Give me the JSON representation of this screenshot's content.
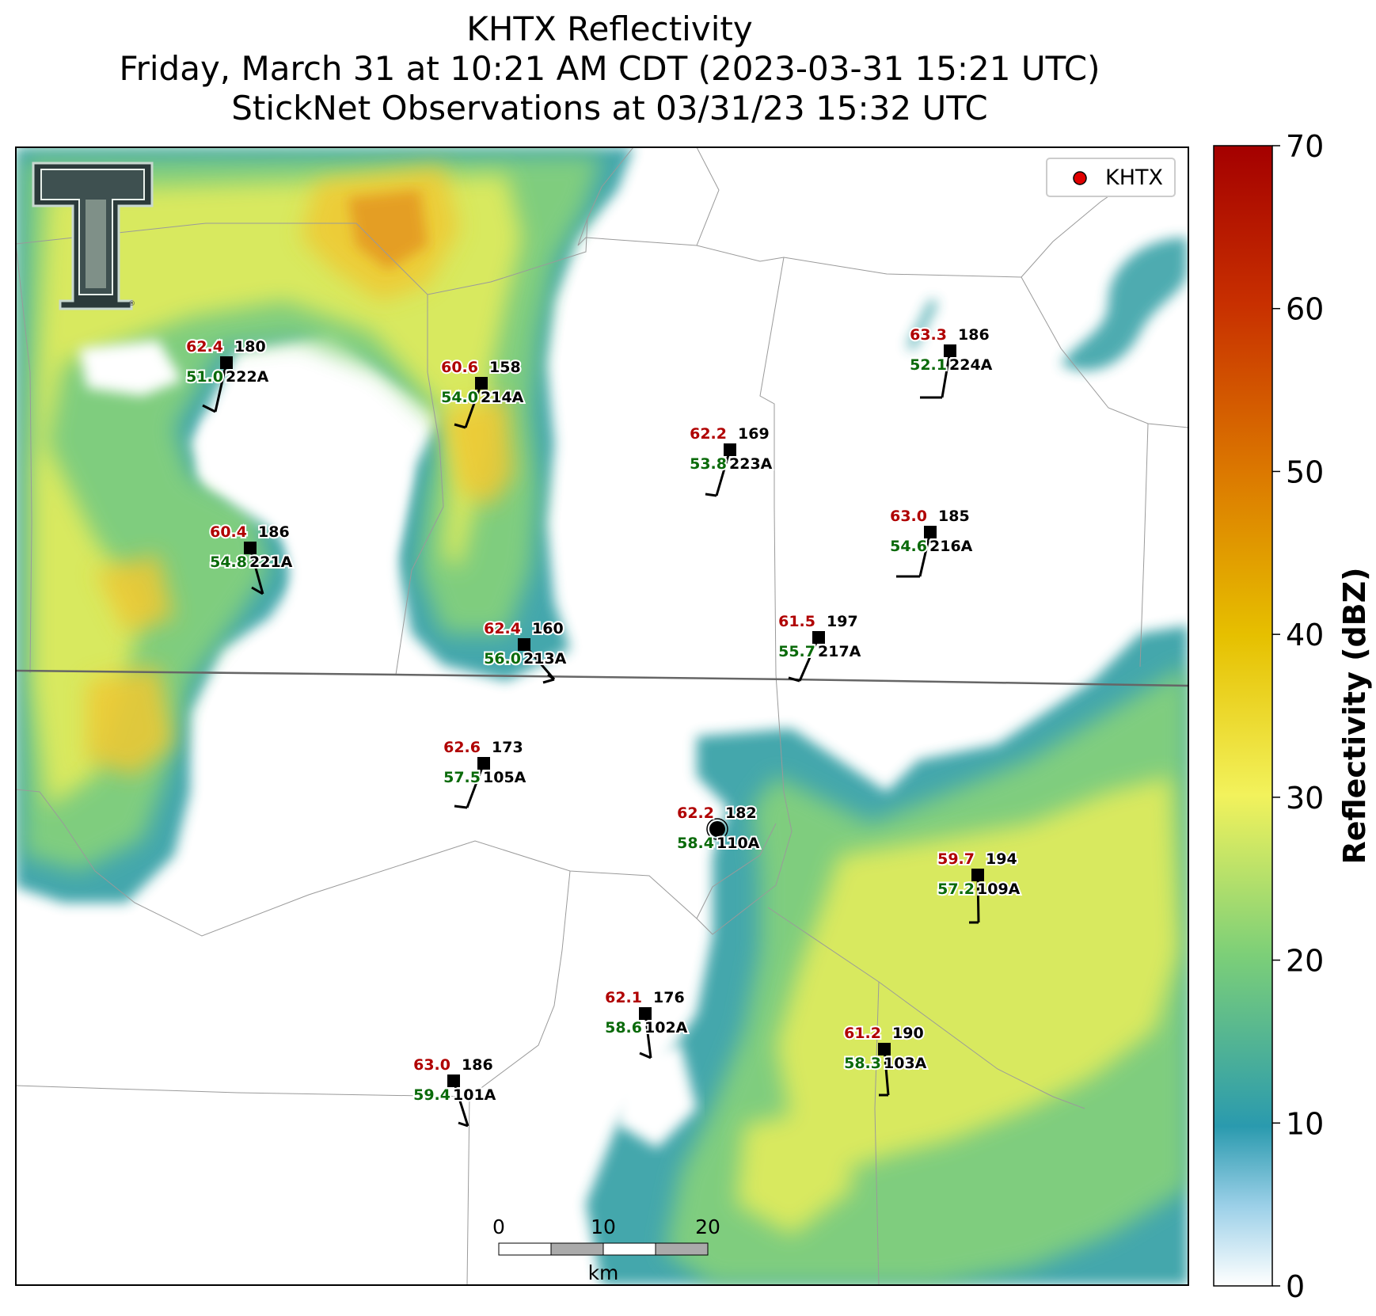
{
  "title": {
    "line1": "KHTX Reflectivity",
    "line2": "Friday, March 31 at 10:21 AM CDT (2023-03-31 15:21 UTC)",
    "line3": "StickNet Observations at 03/31/23 15:32 UTC"
  },
  "legend": {
    "label": "KHTX",
    "marker_color": "#e00000"
  },
  "colorbar": {
    "label": "Reflectivity (dBZ)",
    "min": 0,
    "max": 70,
    "ticks": [
      "0",
      "10",
      "20",
      "30",
      "40",
      "50",
      "60",
      "70"
    ]
  },
  "scalebar": {
    "ticks": [
      "0",
      "10",
      "20"
    ],
    "unit": "km"
  },
  "colors": {
    "temp": "#b00000",
    "dew": "#0a6a0a",
    "text": "#000000"
  },
  "stations": [
    {
      "id": "222A",
      "temp": "62.4",
      "dew": "51.0",
      "dir": "180"
    },
    {
      "id": "214A",
      "temp": "60.6",
      "dew": "54.0",
      "dir": "158"
    },
    {
      "id": "223A",
      "temp": "62.2",
      "dew": "53.8",
      "dir": "169"
    },
    {
      "id": "224A",
      "temp": "63.3",
      "dew": "52.1",
      "dir": "186"
    },
    {
      "id": "221A",
      "temp": "60.4",
      "dew": "54.8",
      "dir": "186"
    },
    {
      "id": "216A",
      "temp": "63.0",
      "dew": "54.6",
      "dir": "185"
    },
    {
      "id": "213A",
      "temp": "62.4",
      "dew": "56.0",
      "dir": "160"
    },
    {
      "id": "217A",
      "temp": "61.5",
      "dew": "55.7",
      "dir": "197"
    },
    {
      "id": "105A",
      "temp": "62.6",
      "dew": "57.5",
      "dir": "173"
    },
    {
      "id": "110A",
      "temp": "62.2",
      "dew": "58.4",
      "dir": "182"
    },
    {
      "id": "109A",
      "temp": "59.7",
      "dew": "57.2",
      "dir": "194"
    },
    {
      "id": "102A",
      "temp": "62.1",
      "dew": "58.6",
      "dir": "176"
    },
    {
      "id": "103A",
      "temp": "61.2",
      "dew": "58.3",
      "dir": "190"
    },
    {
      "id": "101A",
      "temp": "63.0",
      "dew": "59.4",
      "dir": "186"
    }
  ]
}
